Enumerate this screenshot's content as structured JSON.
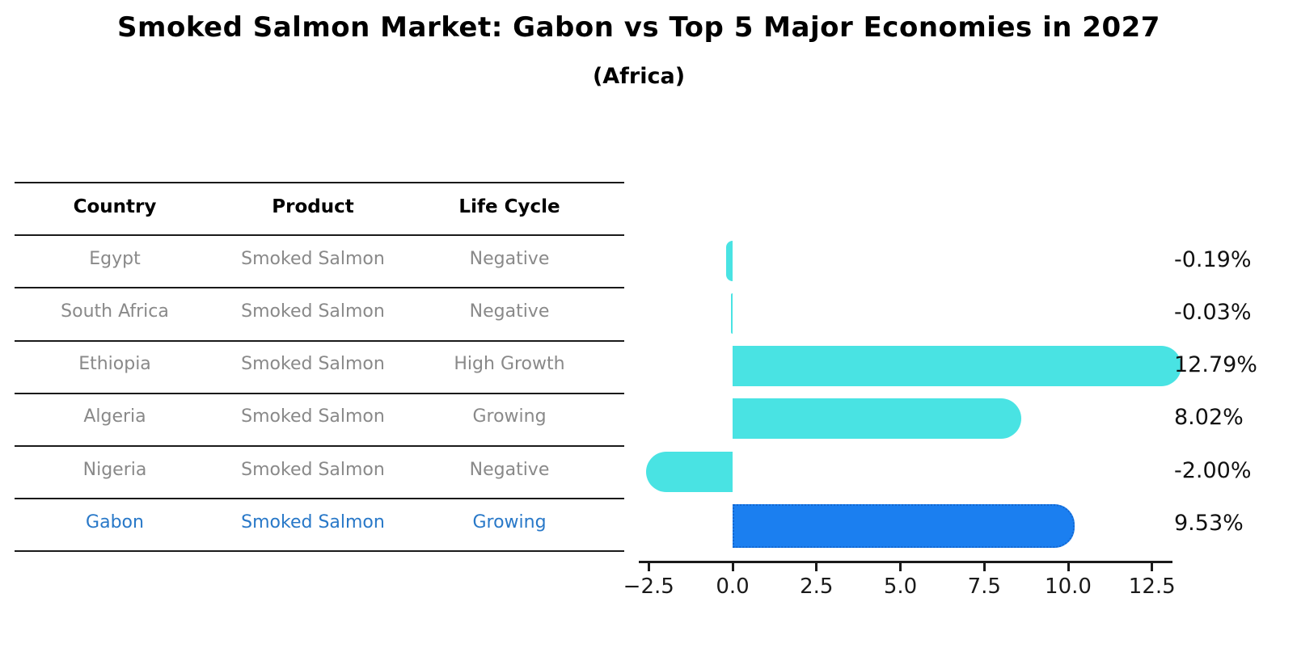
{
  "title": "Smoked Salmon Market: Gabon vs Top 5 Major Economies in 2027",
  "subtitle": "(Africa)",
  "table": {
    "columns": [
      "Country",
      "Product",
      "Life Cycle"
    ],
    "rows": [
      {
        "country": "Egypt",
        "product": "Smoked Salmon",
        "life_cycle": "Negative",
        "highlighted": false
      },
      {
        "country": "South Africa",
        "product": "Smoked Salmon",
        "life_cycle": "Negative",
        "highlighted": false
      },
      {
        "country": "Ethiopia",
        "product": "Smoked Salmon",
        "life_cycle": "High Growth",
        "highlighted": false
      },
      {
        "country": "Algeria",
        "product": "Smoked Salmon",
        "life_cycle": "Growing",
        "highlighted": false
      },
      {
        "country": "Nigeria",
        "product": "Smoked Salmon",
        "life_cycle": "Negative",
        "highlighted": false
      },
      {
        "country": "Gabon",
        "product": "Smoked Salmon",
        "life_cycle": "Growing",
        "highlighted": true
      }
    ]
  },
  "chart_data": {
    "type": "bar",
    "orientation": "horizontal",
    "title": "Smoked Salmon Market: Gabon vs Top 5 Major Economies in 2027 (Africa)",
    "categories": [
      "Egypt",
      "South Africa",
      "Ethiopia",
      "Algeria",
      "Nigeria",
      "Gabon"
    ],
    "values": [
      -0.19,
      -0.03,
      12.79,
      8.02,
      -2.0,
      9.53
    ],
    "value_labels": [
      "-0.19%",
      "-0.03%",
      "12.79%",
      "8.02%",
      "-2.00%",
      "9.53%"
    ],
    "unit": "percent",
    "highlight_index": 5,
    "xlim": [
      -2.8,
      13.1
    ],
    "grid": false,
    "legend": false,
    "xticks": [
      {
        "value": -2.5,
        "label": "−2.5"
      },
      {
        "value": 0,
        "label": "0.0"
      },
      {
        "value": 2.5,
        "label": "2.5"
      },
      {
        "value": 5,
        "label": "5.0"
      },
      {
        "value": 7.5,
        "label": "7.5"
      },
      {
        "value": 10,
        "label": "10.0"
      },
      {
        "value": 12.5,
        "label": "12.5"
      }
    ]
  },
  "colors": {
    "bar": "#49e3e3",
    "highlight_bar": "#1b7ff0",
    "highlight_bar_border": "#1467d0",
    "row_text": "#898989",
    "highlight_text": "#2878c8",
    "header_text": "#000000",
    "axis": "#1a1a1a",
    "value_text": "#111111"
  }
}
